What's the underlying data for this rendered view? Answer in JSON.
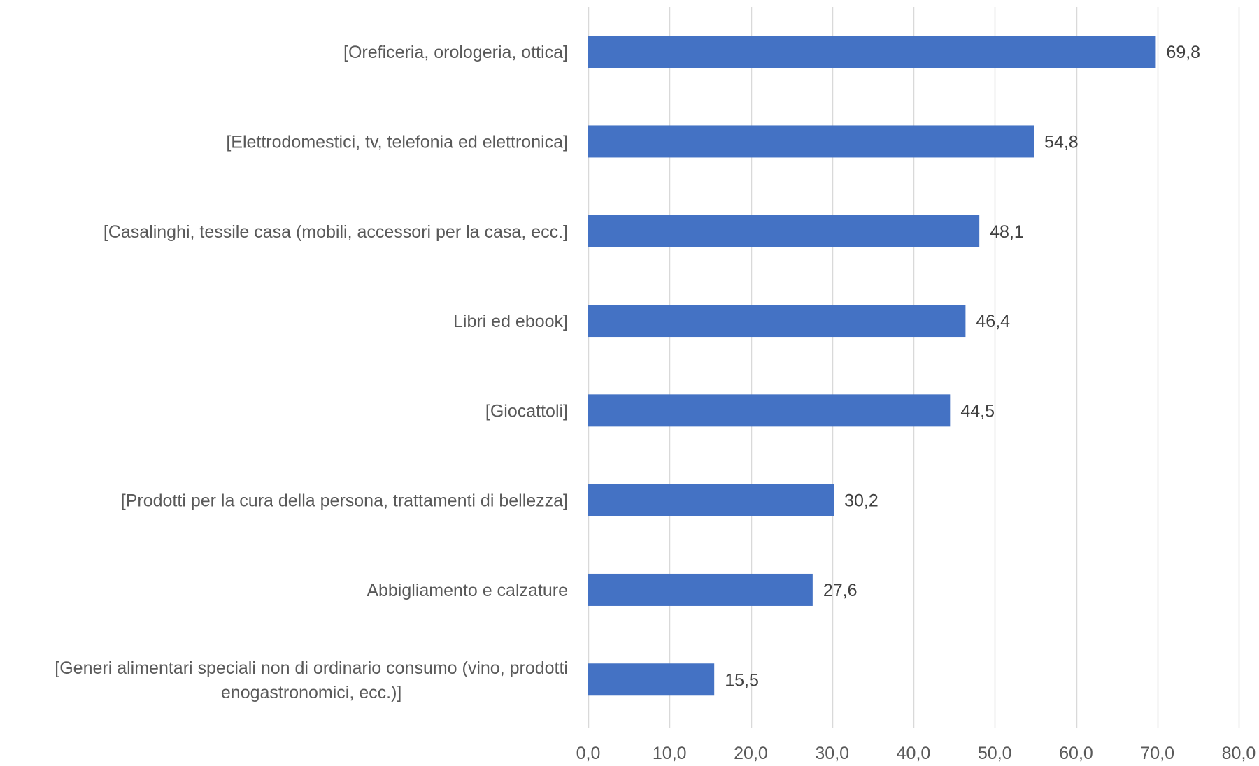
{
  "chart_data": {
    "type": "bar",
    "orientation": "horizontal",
    "categories": [
      "[Oreficeria, orologeria, ottica]",
      "[Elettrodomestici, tv, telefonia ed elettronica]",
      "[Casalinghi, tessile casa (mobili, accessori per la casa, ecc.]",
      "Libri ed ebook]",
      "[Giocattoli]",
      "[Prodotti per la cura della persona, trattamenti di bellezza]",
      "Abbigliamento e calzature",
      "[Generi alimentari speciali non di ordinario consumo (vino, prodotti enogastronomici, ecc.)]"
    ],
    "values": [
      69.8,
      54.8,
      48.1,
      46.4,
      44.5,
      30.2,
      27.6,
      15.5
    ],
    "value_labels": [
      "69,8",
      "54,8",
      "48,1",
      "46,4",
      "44,5",
      "30,2",
      "27,6",
      "15,5"
    ],
    "xlim": [
      0,
      80
    ],
    "xticks": [
      0,
      10,
      20,
      30,
      40,
      50,
      60,
      70,
      80
    ],
    "xtick_labels": [
      "0,0",
      "10,0",
      "20,0",
      "30,0",
      "40,0",
      "50,0",
      "60,0",
      "70,0",
      "80,0"
    ],
    "grid": "vertical",
    "legend": "none",
    "colors": {
      "bar": "#4472c4",
      "grid": "#d9d9d9",
      "category_text": "#595959",
      "tick_text": "#595959",
      "value_text": "#404040"
    }
  }
}
